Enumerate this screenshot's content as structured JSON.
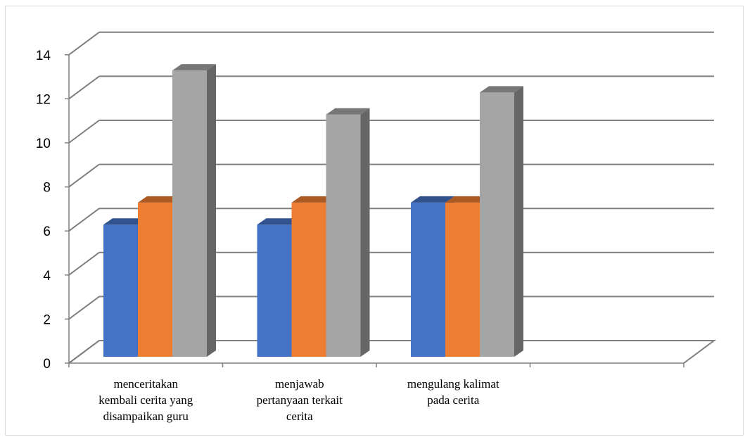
{
  "chart_data": {
    "type": "bar",
    "style": "3d-clustered-column",
    "categories": [
      [
        "menceritakan",
        "kembali cerita yang",
        "disampaikan guru"
      ],
      [
        "menjawab",
        "pertanyaan terkait",
        "cerita"
      ],
      [
        "mengulang kalimat",
        "pada cerita"
      ],
      [
        ""
      ]
    ],
    "series": [
      {
        "color": "#4472C4",
        "values": [
          6,
          6,
          7,
          null
        ]
      },
      {
        "color": "#ED7D31",
        "values": [
          7,
          7,
          7,
          null
        ]
      },
      {
        "color": "#A5A5A5",
        "values": [
          13,
          11,
          12,
          null
        ]
      }
    ],
    "ylim": [
      0,
      14
    ],
    "yticks": [
      0,
      2,
      4,
      6,
      8,
      10,
      12,
      14
    ],
    "grid": true,
    "legend": "none",
    "title": "",
    "xlabel": "",
    "ylabel": ""
  }
}
